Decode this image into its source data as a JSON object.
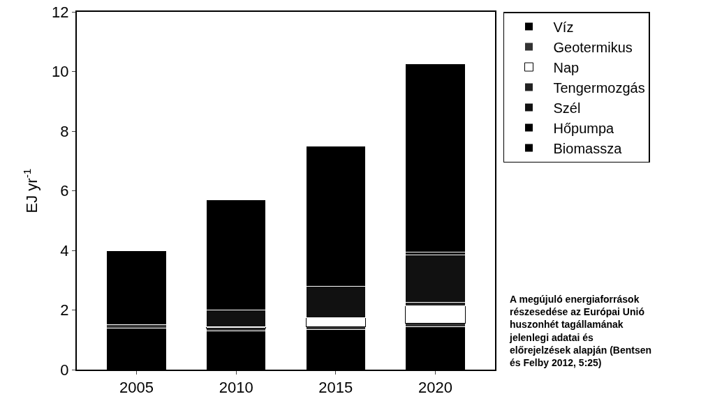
{
  "chart_data": {
    "type": "bar",
    "stacked": true,
    "ylabel": "EJ yr$^{-1}$",
    "categories": [
      "2005",
      "2010",
      "2015",
      "2020"
    ],
    "ylim": [
      0,
      12
    ],
    "yticks": [
      0,
      2,
      4,
      6,
      8,
      10,
      12
    ],
    "grid": false,
    "legend": "top right",
    "series": [
      {
        "name": "Víz",
        "color": "#000000",
        "values": [
          1.4,
          1.3,
          1.35,
          1.45
        ]
      },
      {
        "name": "Geotermikus",
        "color": "#333333",
        "values": [
          0.1,
          0.1,
          0.1,
          0.1
        ]
      },
      {
        "name": "Nap",
        "color": "#ffffff",
        "values": [
          0,
          0.05,
          0.3,
          0.6
        ]
      },
      {
        "name": "Tengermozgás",
        "color": "#222222",
        "values": [
          0,
          0,
          0,
          0.1
        ]
      },
      {
        "name": "Szél",
        "color": "#111111",
        "values": [
          0,
          0.55,
          1.05,
          1.6
        ]
      },
      {
        "name": "Hőpumpa",
        "color": "#000000",
        "values": [
          0,
          0,
          0,
          0.1
        ]
      },
      {
        "name": "Biomassza",
        "color": "#000000",
        "values": [
          2.5,
          3.7,
          4.7,
          6.3
        ]
      }
    ],
    "annotations": [
      "A megújuló energiaforrások részesedése az Európai Unió huszonhét tagállamának jelenlegi adatai és előrejelzések alapján (Bentsen és Felby 2012, 5:25)"
    ]
  }
}
